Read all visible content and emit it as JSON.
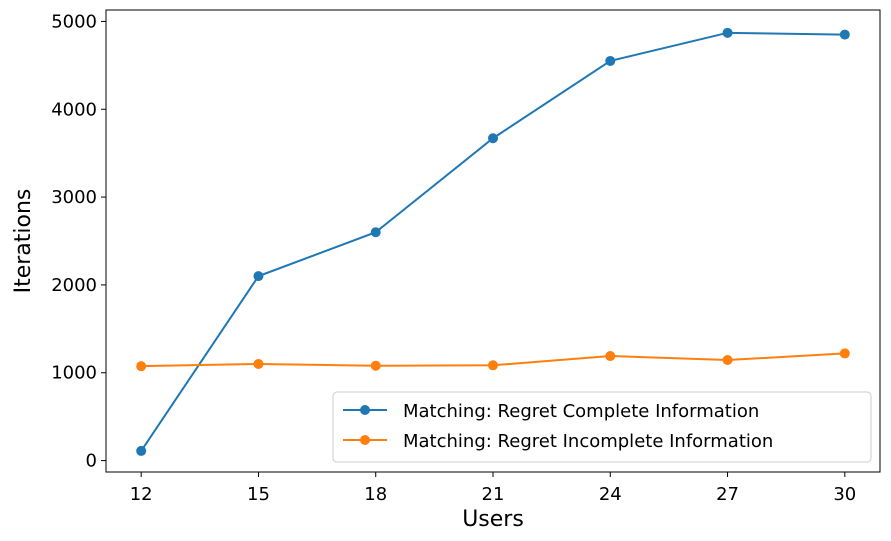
{
  "chart_data": {
    "type": "line",
    "xlabel": "Users",
    "ylabel": "Iterations",
    "x": [
      12,
      15,
      18,
      21,
      24,
      27,
      30
    ],
    "xticks": [
      12,
      15,
      18,
      21,
      24,
      27,
      30
    ],
    "yticks": [
      0,
      1000,
      2000,
      3000,
      4000,
      5000
    ],
    "ylim": [
      -130,
      5130
    ],
    "xlim": [
      11.1,
      30.9
    ],
    "grid": false,
    "legend_position": "lower-right",
    "series": [
      {
        "name": "Matching: Regret Complete Information",
        "color": "#1f77b4",
        "marker": "circle",
        "values": [
          110,
          2100,
          2600,
          3670,
          4550,
          4870,
          4850
        ]
      },
      {
        "name": "Matching: Regret Incomplete Information",
        "color": "#ff7f0e",
        "marker": "circle",
        "values": [
          1075,
          1100,
          1080,
          1085,
          1190,
          1145,
          1220
        ]
      }
    ]
  }
}
